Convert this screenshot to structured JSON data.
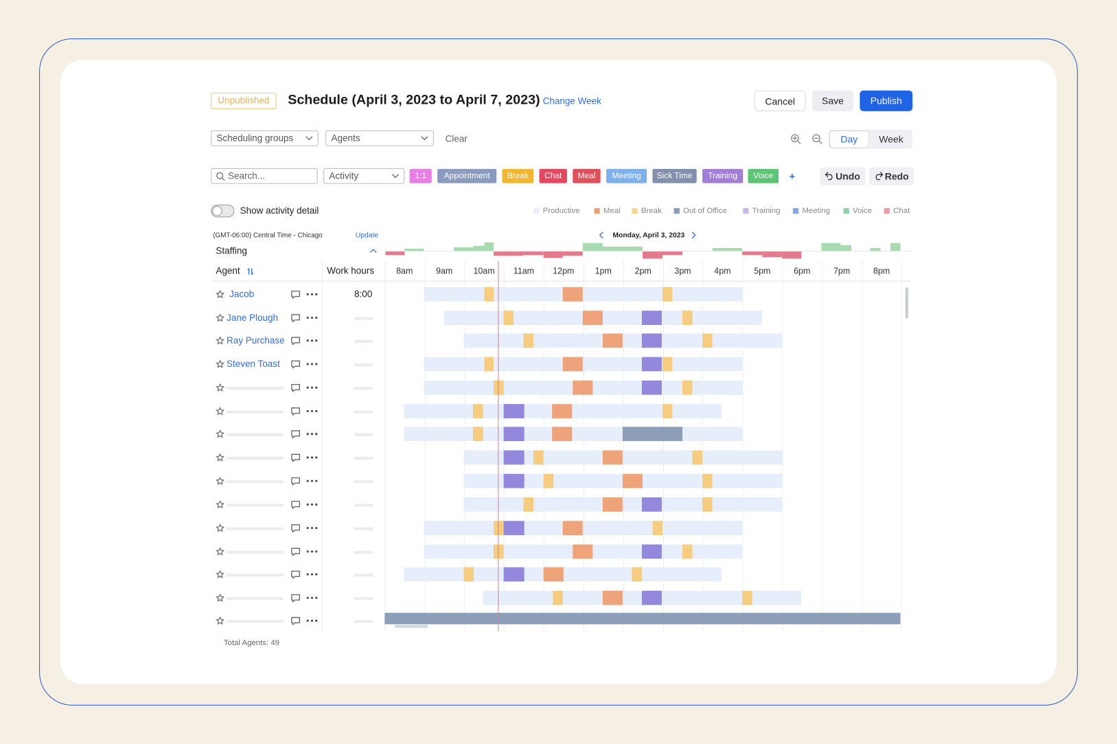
{
  "header": {
    "status": "Unpublished",
    "title": "Schedule (April 3, 2023 to April 7, 2023)",
    "change_week": "Change Week",
    "buttons": [
      "Cancel",
      "Save",
      "Publish"
    ]
  },
  "filters": {
    "groups": "Scheduling groups",
    "agents": "Agents",
    "clear": "Clear",
    "views": [
      "Day",
      "Week"
    ]
  },
  "toolbar": {
    "search": "Search...",
    "activity": "Activity",
    "activities": [
      "1:1",
      "Appointment",
      "Break",
      "Chat",
      "Meal",
      "Meeting",
      "Sick Time",
      "Training",
      "Voice"
    ],
    "add": "+",
    "undo": "Undo",
    "redo": "Redo"
  },
  "options": {
    "toggle_label": "Show activity detail",
    "legend": [
      "Productive",
      "Meal",
      "Break",
      "Out of Office",
      "Training",
      "Meeting",
      "Voice",
      "Chat"
    ]
  },
  "timeline": {
    "timezone": "(GMT-06:00) Central Time - Chicago",
    "update": "Update",
    "date": "Monday, April 3, 2023",
    "staffing": "Staffing",
    "agent_header": "Agent",
    "hours_header": "Work hours",
    "hours": [
      "8am",
      "9am",
      "10am",
      "11am",
      "12pm",
      "1pm",
      "2pm",
      "3pm",
      "4pm",
      "5pm",
      "6pm",
      "7pm",
      "8pm"
    ]
  },
  "agents": [
    {
      "name": "Jacob",
      "work_hours": "8:00"
    },
    {
      "name": "Jane Plough"
    },
    {
      "name": "Ray Purchase"
    },
    {
      "name": "Steven Toast"
    }
  ],
  "footer": {
    "total": "Total Agents: 49"
  }
}
